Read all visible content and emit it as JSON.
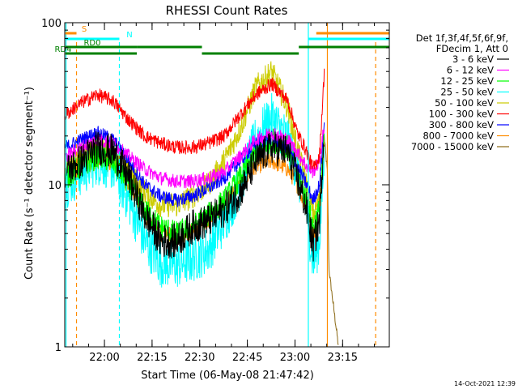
{
  "chart_data": {
    "type": "line",
    "title": "RHESSI Count Rates",
    "xlabel": "Start Time (06-May-08 21:47:42)",
    "ylabel": "Count Rate (s⁻¹ detector segment⁻¹)",
    "yscale": "log",
    "ylim": [
      1,
      100
    ],
    "xlim_minutes": [
      -0.2,
      102
    ],
    "x_unit": "minutes after 21:47:42",
    "yticks": [
      {
        "label": "1",
        "value": 1
      },
      {
        "label": "10",
        "value": 10
      },
      {
        "label": "100",
        "value": 100
      }
    ],
    "xticks": [
      {
        "label": "22:00",
        "value": 12.3
      },
      {
        "label": "22:15",
        "value": 27.3
      },
      {
        "label": "22:30",
        "value": 42.3
      },
      {
        "label": "22:45",
        "value": 57.3
      },
      {
        "label": "23:00",
        "value": 72.3
      },
      {
        "label": "23:15",
        "value": 87.3
      }
    ],
    "legend_header": [
      "Det 1f,3f,4f,5f,6f,9f,",
      "FDecim 1, Att 0"
    ],
    "series": [
      {
        "name": "3 - 6 keV",
        "color": "#000000",
        "noise": 0.25,
        "x": [
          0,
          5,
          10,
          15,
          20,
          25,
          30,
          35,
          40,
          45,
          50,
          55,
          60,
          65,
          70,
          73,
          76,
          78,
          80,
          81.5
        ],
        "values": [
          12,
          14,
          17,
          16,
          11,
          6.5,
          4.5,
          4.5,
          5.5,
          6,
          7,
          9,
          14,
          17,
          16,
          11,
          7,
          4.2,
          6,
          22
        ]
      },
      {
        "name": "6 - 12 keV",
        "color": "#ff00ff",
        "noise": 0.1,
        "x": [
          0,
          5,
          10,
          15,
          20,
          25,
          30,
          35,
          40,
          45,
          50,
          55,
          60,
          65,
          70,
          73,
          76,
          78,
          80,
          81.5
        ],
        "values": [
          15,
          17,
          19,
          18,
          15,
          12.5,
          11,
          10.5,
          10.5,
          11,
          12,
          15,
          19,
          21,
          19,
          16,
          13,
          12,
          14,
          23
        ]
      },
      {
        "name": "12 - 25 keV",
        "color": "#00ff00",
        "noise": 0.18,
        "x": [
          0,
          5,
          10,
          15,
          20,
          25,
          30,
          35,
          40,
          45,
          50,
          55,
          60,
          65,
          70,
          73,
          76,
          78,
          80,
          81.5
        ],
        "values": [
          11,
          13,
          15,
          14,
          10,
          7,
          5.5,
          5,
          5.5,
          6.5,
          8,
          11,
          16,
          19,
          17,
          12,
          8,
          5.5,
          7,
          20
        ]
      },
      {
        "name": "25 - 50 keV",
        "color": "#00ffff",
        "noise": 0.35,
        "x": [
          0,
          5,
          10,
          15,
          20,
          25,
          30,
          35,
          40,
          45,
          50,
          55,
          60,
          65,
          70,
          73,
          76,
          78,
          80,
          81.5
        ],
        "values": [
          10,
          12,
          14,
          13,
          8,
          4.5,
          3.3,
          3.2,
          3.5,
          4,
          6,
          10,
          19,
          26,
          19,
          12,
          7,
          3.3,
          4.5,
          15
        ]
      },
      {
        "name": "50 - 100 keV",
        "color": "#cccc00",
        "noise": 0.18,
        "x": [
          0,
          5,
          10,
          15,
          20,
          25,
          30,
          35,
          40,
          45,
          50,
          55,
          60,
          65,
          70,
          73,
          76,
          78,
          80,
          81.5
        ],
        "values": [
          13,
          15,
          17,
          15,
          12,
          9,
          7.5,
          7.5,
          8.5,
          10,
          14,
          22,
          40,
          50,
          30,
          17,
          10,
          6.5,
          8,
          20
        ]
      },
      {
        "name": "100 - 300 keV",
        "color": "#ff0000",
        "noise": 0.1,
        "x": [
          0,
          5,
          10,
          15,
          20,
          25,
          30,
          35,
          40,
          45,
          50,
          55,
          60,
          65,
          70,
          73,
          76,
          78,
          80,
          81.5
        ],
        "values": [
          27,
          32,
          36,
          33,
          25,
          20,
          18,
          17,
          17,
          18,
          20,
          27,
          36,
          42,
          33,
          21,
          16,
          12.5,
          15,
          48
        ]
      },
      {
        "name": "300 - 800 keV",
        "color": "#0000ff",
        "noise": 0.1,
        "x": [
          0,
          5,
          10,
          15,
          20,
          25,
          30,
          35,
          40,
          45,
          50,
          55,
          60,
          65,
          70,
          73,
          76,
          78,
          80,
          81.5
        ],
        "values": [
          17,
          19,
          21,
          19,
          14,
          10,
          8.5,
          8,
          8.5,
          9.5,
          11,
          14,
          18,
          19.5,
          17,
          13,
          10,
          8,
          10,
          24
        ]
      },
      {
        "name": "800 - 7000 keV",
        "color": "#ff8c00",
        "noise": 0.12,
        "x": [
          0,
          5,
          10,
          15,
          20,
          25,
          30,
          35,
          40,
          45,
          50,
          55,
          60,
          65,
          70,
          73,
          76,
          78,
          80,
          81.5
        ],
        "values": [
          11,
          12.5,
          14,
          13,
          10,
          6.5,
          5,
          4.8,
          5.2,
          6,
          7.5,
          10,
          13,
          14,
          12.5,
          10,
          7,
          5,
          6,
          16
        ]
      },
      {
        "name": "7000 - 15000 keV",
        "color": "#8b6914",
        "noise": 0.05,
        "x": [
          81.5,
          82.5,
          83,
          86
        ],
        "values": [
          20,
          12,
          3,
          1
        ]
      }
    ],
    "attenuator_bars": [
      {
        "label": "S",
        "color": "#ff8c00",
        "row": 0,
        "segments": [
          [
            0,
            3.5
          ],
          [
            79,
            102
          ]
        ],
        "vlines": [
          3.5,
          79
        ]
      },
      {
        "label": "N",
        "color": "#00ffff",
        "row": 1,
        "segments": [
          [
            0,
            17
          ],
          [
            76.5,
            102
          ]
        ],
        "vlines": [
          17,
          76.5
        ]
      },
      {
        "label": "RD0",
        "color": "#008000",
        "row": 2,
        "segments": [
          [
            0,
            22.5
          ],
          [
            22.5,
            43
          ],
          [
            73.5,
            102
          ]
        ],
        "vlines": []
      },
      {
        "label": "RD4",
        "color": "#008000",
        "row": 3,
        "segments": [
          [
            0,
            22.5
          ],
          [
            43,
            73.5
          ]
        ],
        "vlines": []
      }
    ],
    "solid_vlines": [
      {
        "x": 0.2,
        "color": "#00ffff"
      },
      {
        "x": 76.5,
        "color": "#00ffff"
      },
      {
        "x": 82.5,
        "color": "#ff8c00"
      }
    ],
    "dashed_vlines": [
      {
        "x": 3.5,
        "color": "#ff8c00"
      },
      {
        "x": 17,
        "color": "#00ffff"
      },
      {
        "x": 97.7,
        "color": "#ff8c00"
      }
    ]
  },
  "footer": {
    "timestamp": "14-Oct-2021 12:39"
  }
}
